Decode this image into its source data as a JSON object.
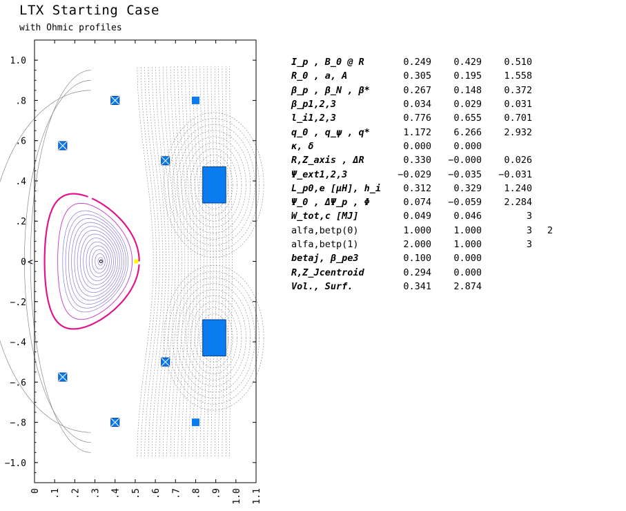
{
  "header": {
    "title": "LTX Starting Case",
    "subtitle": "with Ohmic profiles"
  },
  "plot": {
    "y_ticks": [
      "1.0",
      ".8",
      ".6",
      ".4",
      ".2",
      "0",
      "-.2",
      "-.4",
      "-.6",
      "-.8",
      "-1.0"
    ],
    "y_tick_values": [
      1.0,
      0.8,
      0.6,
      0.4,
      0.2,
      0.0,
      -0.2,
      -0.4,
      -0.6,
      -0.8,
      -1.0
    ],
    "x_ticks": [
      "0",
      ".1",
      ".2",
      ".3",
      ".4",
      ".5",
      ".6",
      ".7",
      ".8",
      ".9",
      "1.0",
      "1.1"
    ],
    "x_tick_values": [
      0.0,
      0.1,
      0.2,
      0.3,
      0.4,
      0.5,
      0.6,
      0.7,
      0.8,
      0.9,
      1.0,
      1.1
    ],
    "xlim": [
      0.0,
      1.1
    ],
    "ylim": [
      -1.1,
      1.1
    ],
    "colors": {
      "coil": "#0a7cf0",
      "separatrix": "#e0148c",
      "inner_flux": "#cc44cc",
      "flux_contours": "#8a7ad8",
      "vacuum_contours": "#888888",
      "axis_marker": "#ffff00"
    },
    "coils_crossed": [
      {
        "r": 0.14,
        "z": 0.575
      },
      {
        "r": 0.14,
        "z": -0.575
      },
      {
        "r": 0.4,
        "z": 0.8
      },
      {
        "r": 0.4,
        "z": -0.8
      },
      {
        "r": 0.65,
        "z": 0.5
      },
      {
        "r": 0.65,
        "z": -0.5
      }
    ],
    "coils_plain": [
      {
        "r": 0.8,
        "z": 0.8
      },
      {
        "r": 0.8,
        "z": -0.8
      }
    ],
    "coils_large": [
      {
        "r1": 0.835,
        "r2": 0.95,
        "z1": 0.29,
        "z2": 0.47
      },
      {
        "r1": 0.835,
        "r2": 0.95,
        "z1": -0.47,
        "z2": -0.29
      }
    ],
    "magnetic_axis": {
      "r": 0.33,
      "z": 0.0
    },
    "x_point_marker": {
      "r": 0.505,
      "z": 0.0
    }
  },
  "params": [
    {
      "name": "I_p , B_0 @ R",
      "values": [
        "0.249",
        "0.429",
        "0.510",
        ""
      ]
    },
    {
      "name": "R_0 , a, A",
      "values": [
        "0.305",
        "0.195",
        "1.558",
        ""
      ]
    },
    {
      "name": "β_p , β_N , β*",
      "values": [
        "0.267",
        "0.148",
        "0.372",
        ""
      ]
    },
    {
      "name": "β_p1,2,3",
      "values": [
        "0.034",
        "0.029",
        "0.031",
        ""
      ]
    },
    {
      "name": "l_i1,2,3",
      "values": [
        "0.776",
        "0.655",
        "0.701",
        ""
      ]
    },
    {
      "name": "q_0 , q_ψ , q*",
      "values": [
        "1.172",
        "6.266",
        "2.932",
        ""
      ]
    },
    {
      "name": "κ, δ",
      "values": [
        "0.000",
        "0.000",
        "",
        ""
      ]
    },
    {
      "name": "R,Z_axis , ΔR",
      "values": [
        "0.330",
        "-0.000",
        "0.026",
        ""
      ]
    },
    {
      "name": "Ψ_ext1,2,3",
      "values": [
        "-0.029",
        "-0.035",
        "-0.031",
        ""
      ]
    },
    {
      "name": "L_p0,e [μH], h_i",
      "values": [
        "0.312",
        "0.329",
        "1.240",
        ""
      ]
    },
    {
      "name": "Ψ_0 , ΔΨ_p , Φ",
      "values": [
        "0.074",
        "-0.059",
        "2.284",
        ""
      ]
    },
    {
      "name": "W_tot,c [MJ]",
      "values": [
        "0.049",
        "0.046",
        "3",
        ""
      ]
    },
    {
      "name": "alfa,betp(0)",
      "plain": true,
      "values": [
        "1.000",
        "1.000",
        "3",
        "2"
      ]
    },
    {
      "name": "alfa,betp(1)",
      "plain": true,
      "values": [
        "2.000",
        "1.000",
        "3",
        ""
      ]
    },
    {
      "name": "betaj, β_pe3",
      "values": [
        "0.100",
        "0.000",
        "",
        ""
      ]
    },
    {
      "name": "R,Z_Jcentroid",
      "values": [
        "0.294",
        "0.000",
        "",
        ""
      ]
    },
    {
      "name": "Vol., Surf.",
      "values": [
        "0.341",
        "2.874",
        "",
        ""
      ]
    }
  ]
}
